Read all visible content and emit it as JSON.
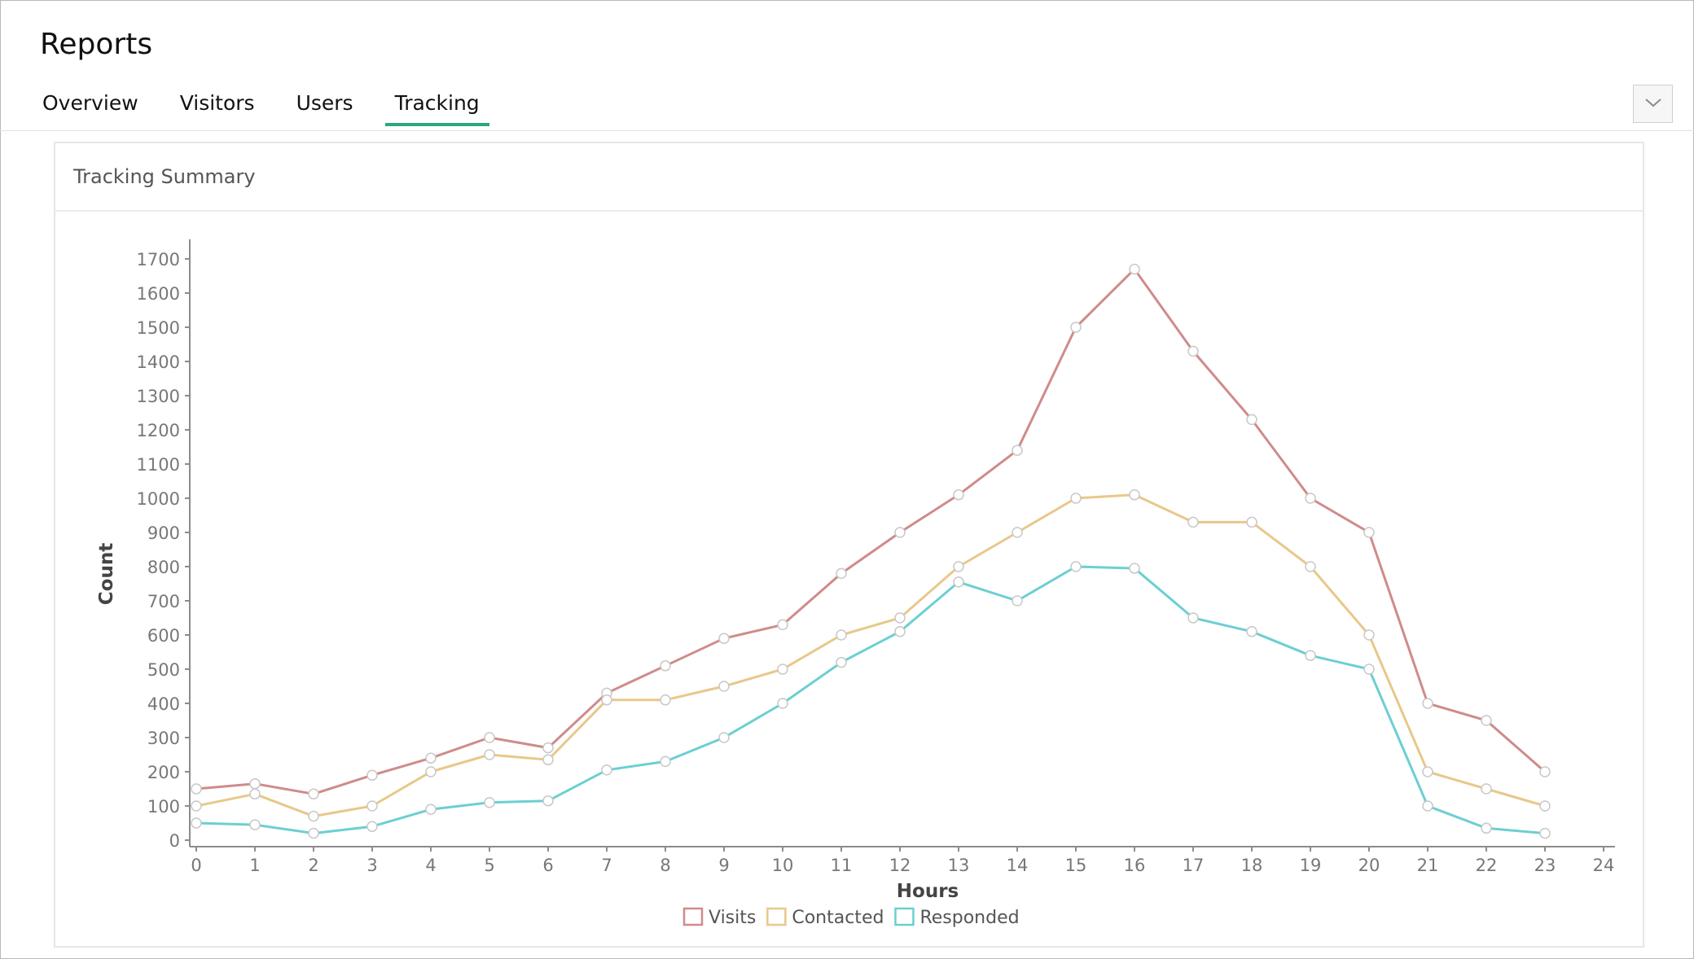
{
  "header": {
    "title": "Reports"
  },
  "tabs": [
    {
      "label": "Overview",
      "active": false
    },
    {
      "label": "Visitors",
      "active": false
    },
    {
      "label": "Users",
      "active": false
    },
    {
      "label": "Tracking",
      "active": true
    }
  ],
  "toolbar": {
    "dropdown_icon": "chevron-down-icon"
  },
  "card": {
    "title": "Tracking Summary"
  },
  "chart_data": {
    "type": "line",
    "title": "",
    "xlabel": "Hours",
    "ylabel": "Count",
    "xlim": [
      0,
      24
    ],
    "ylim": [
      0,
      1700
    ],
    "x_ticks": [
      "0",
      "1",
      "2",
      "3",
      "4",
      "5",
      "6",
      "7",
      "8",
      "9",
      "10",
      "11",
      "12",
      "13",
      "14",
      "15",
      "16",
      "17",
      "18",
      "19",
      "20",
      "21",
      "22",
      "23",
      "24"
    ],
    "y_ticks": [
      "0",
      "100",
      "200",
      "300",
      "400",
      "500",
      "600",
      "700",
      "800",
      "900",
      "1000",
      "1100",
      "1200",
      "1300",
      "1400",
      "1500",
      "1600",
      "1700"
    ],
    "x": [
      0,
      1,
      2,
      3,
      4,
      5,
      6,
      7,
      8,
      9,
      10,
      11,
      12,
      13,
      14,
      15,
      16,
      17,
      18,
      19,
      20,
      21,
      22,
      23
    ],
    "grid": false,
    "legend_position": "bottom",
    "series": [
      {
        "name": "Visits",
        "color": "#cf8b8b",
        "values": [
          150,
          165,
          135,
          190,
          240,
          300,
          270,
          430,
          510,
          590,
          630,
          780,
          900,
          1010,
          1140,
          1500,
          1670,
          1430,
          1230,
          1000,
          900,
          400,
          350,
          200
        ]
      },
      {
        "name": "Contacted",
        "color": "#e8c88a",
        "values": [
          100,
          135,
          70,
          100,
          200,
          250,
          235,
          410,
          410,
          450,
          500,
          600,
          650,
          800,
          900,
          1000,
          1010,
          930,
          930,
          800,
          600,
          200,
          150,
          100
        ]
      },
      {
        "name": "Responded",
        "color": "#6ccfd2",
        "values": [
          50,
          45,
          20,
          40,
          90,
          110,
          115,
          205,
          230,
          300,
          400,
          520,
          610,
          755,
          700,
          800,
          795,
          650,
          610,
          540,
          500,
          100,
          35,
          20
        ]
      }
    ]
  }
}
